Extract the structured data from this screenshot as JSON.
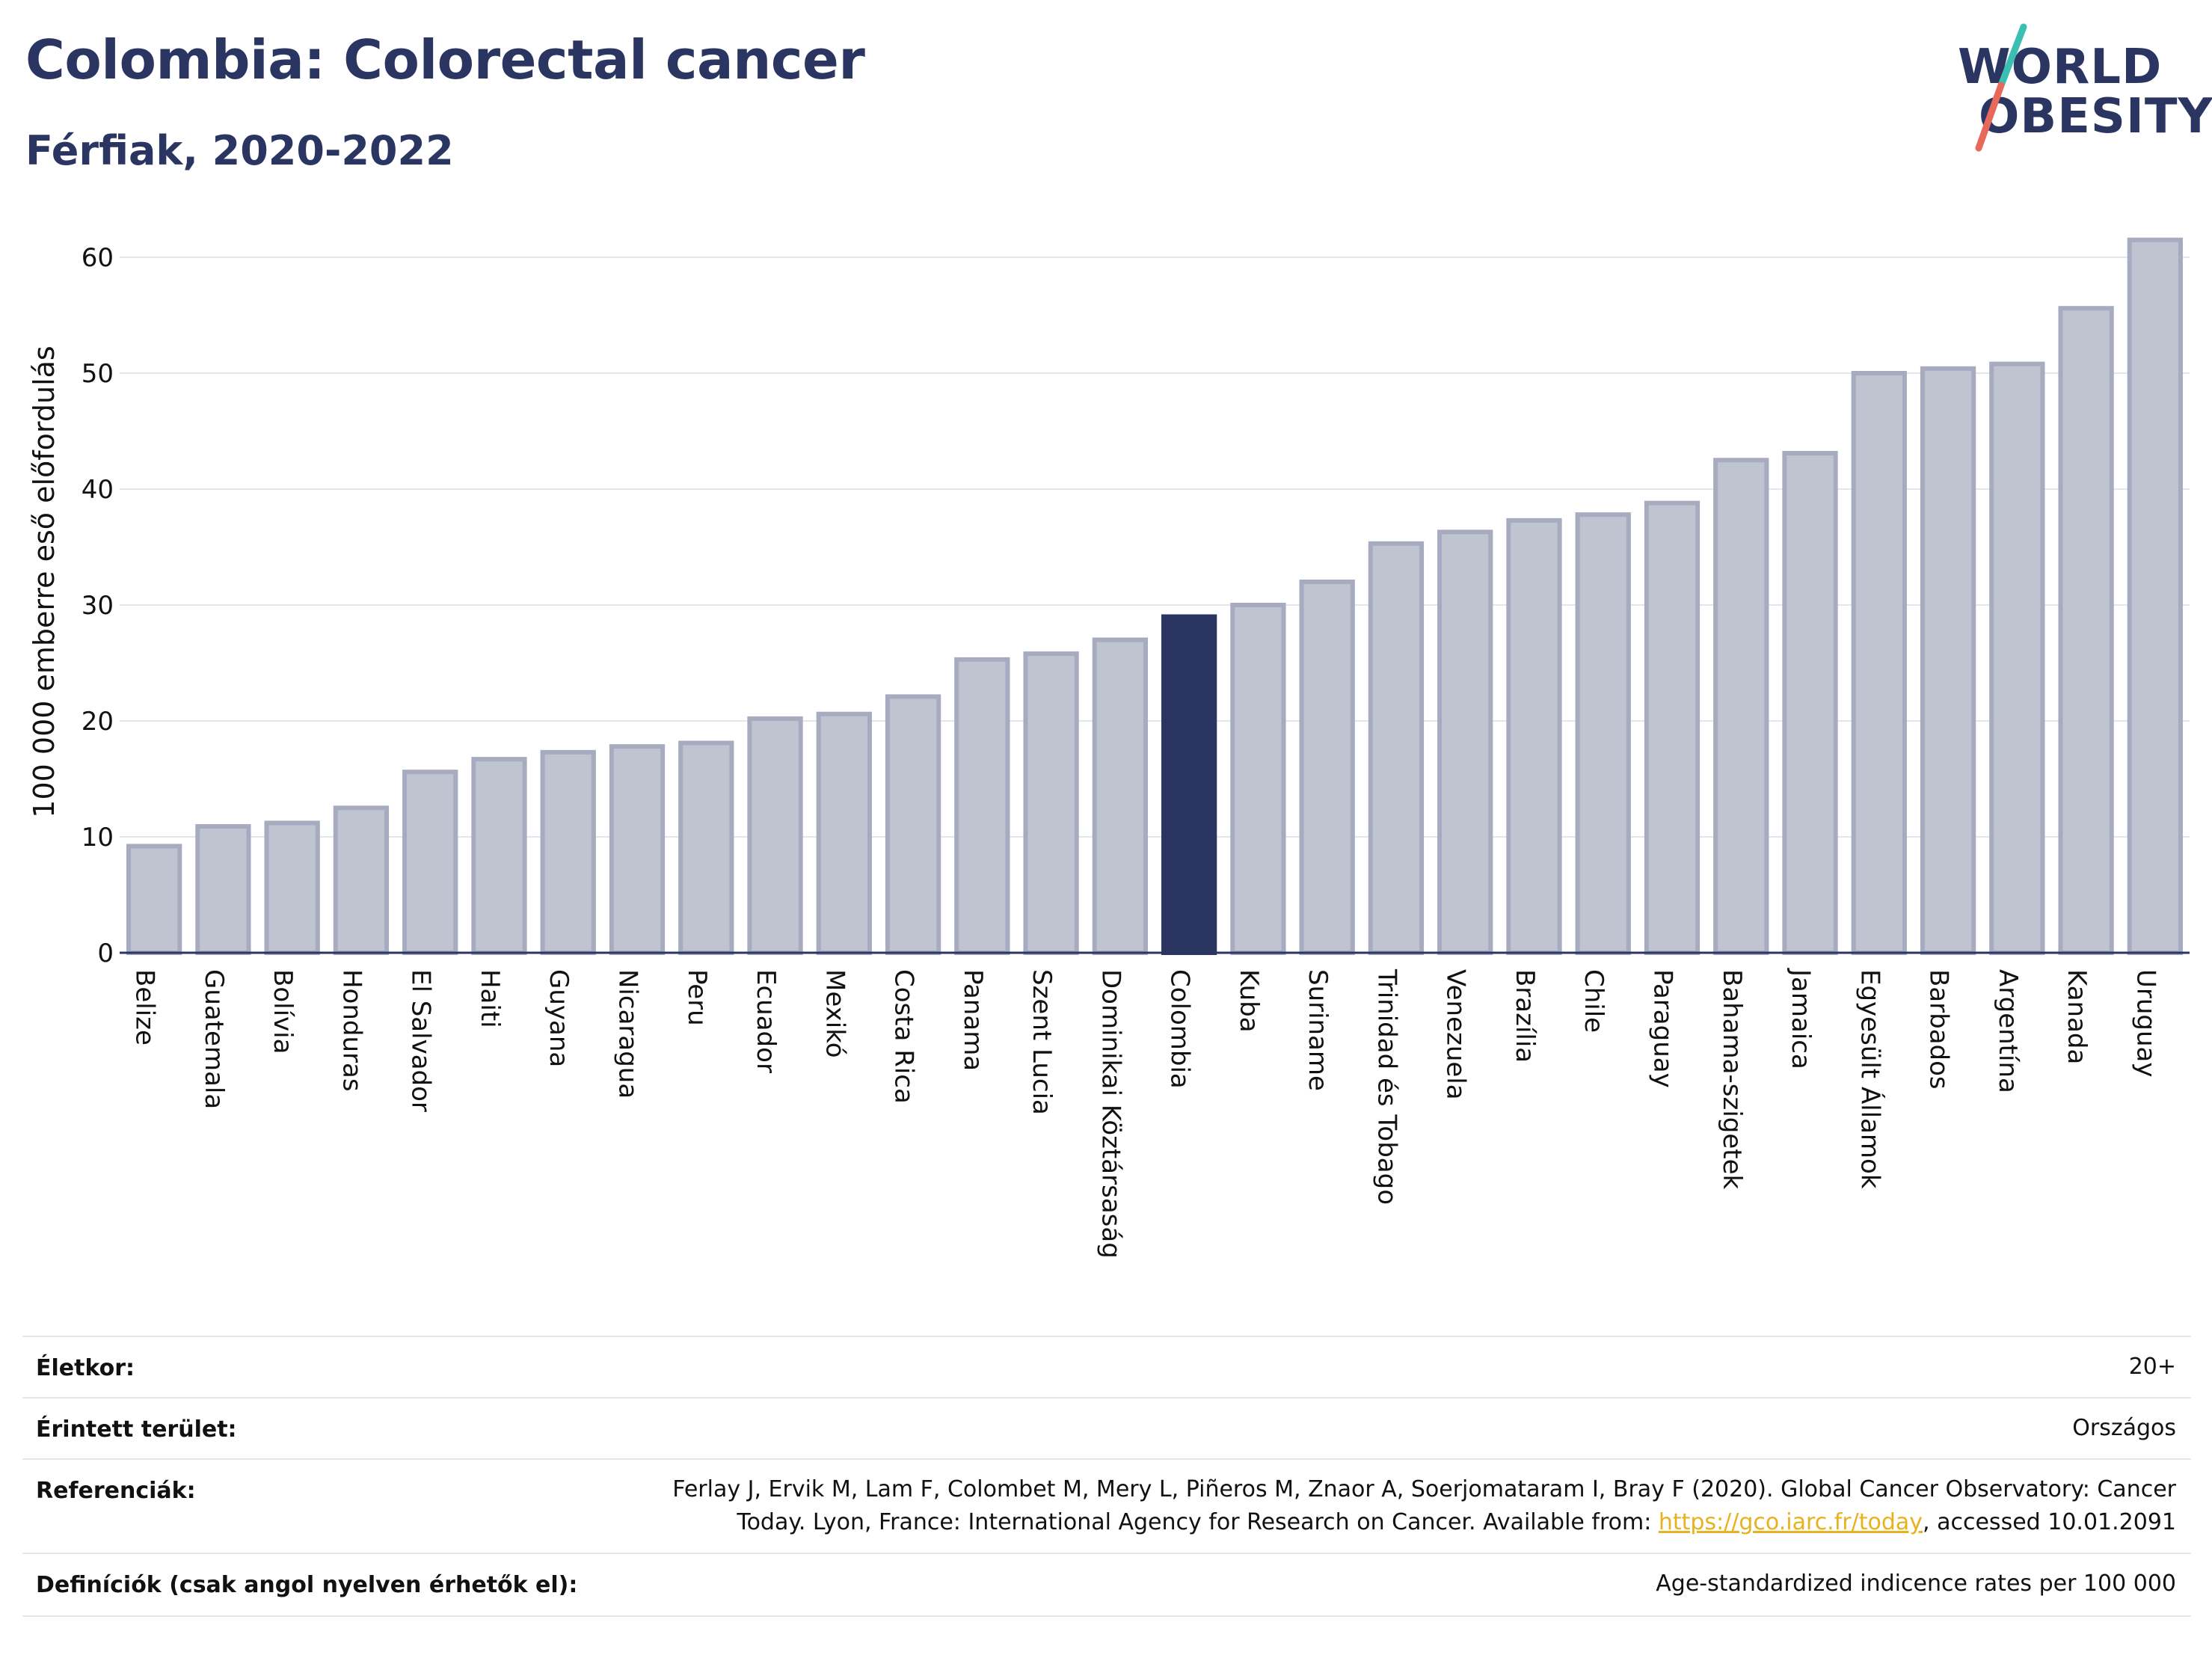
{
  "header": {
    "title": "Colombia: Colorectal cancer",
    "subtitle": "Férfiak, 2020-2022"
  },
  "logo": {
    "line1": "WORLD",
    "line2": "OBESITY",
    "colors": {
      "text": "#2b3562",
      "slash_top": "#3bbfb3",
      "slash_bottom": "#e8685a"
    }
  },
  "colors": {
    "bar_default": "#c0c3d0",
    "bar_default_border": "#a6abbf",
    "bar_highlight": "#2b3562",
    "grid": "#e4e6ee",
    "axis": "#2b3562"
  },
  "chart_data": {
    "type": "bar",
    "ylabel": "100 000 emberre eső előfordulás",
    "ylim": [
      0,
      64
    ],
    "yticks": [
      0,
      10,
      20,
      30,
      40,
      50,
      60
    ],
    "grid": true,
    "highlight": "Colombia",
    "categories": [
      "Belize",
      "Guatemala",
      "Bolívia",
      "Honduras",
      "El Salvador",
      "Haiti",
      "Guyana",
      "Nicaragua",
      "Peru",
      "Ecuador",
      "Mexikó",
      "Costa Rica",
      "Panama",
      "Szent Lucia",
      "Dominikai Köztársaság",
      "Colombia",
      "Kuba",
      "Suriname",
      "Trinidad és Tobago",
      "Venezuela",
      "Brazília",
      "Chile",
      "Paraguay",
      "Bahama-szigetek",
      "Jamaica",
      "Egyesült Államok",
      "Barbados",
      "Argentína",
      "Kanada",
      "Uruguay"
    ],
    "values": [
      9.2,
      10.9,
      11.2,
      12.5,
      15.6,
      16.7,
      17.3,
      17.8,
      18.1,
      20.2,
      20.6,
      22.1,
      25.3,
      25.8,
      27.0,
      29.0,
      30.0,
      32.0,
      35.3,
      36.3,
      37.3,
      37.8,
      38.8,
      42.5,
      43.1,
      50.0,
      50.4,
      50.8,
      55.6,
      61.5
    ]
  },
  "info": {
    "age_label": "Életkor:",
    "age_value": "20+",
    "area_label": "Érintett terület:",
    "area_value": "Országos",
    "ref_label": "Referenciák:",
    "ref_line1": "Ferlay J, Ervik M, Lam F, Colombet M, Mery L, Piñeros M, Znaor A, Soerjomataram I, Bray F (2020). Global Cancer Observatory: Cancer",
    "ref_line2_pre": "Today. Lyon, France: International Agency for Research on Cancer. Available from: ",
    "ref_link": "https://gco.iarc.fr/today",
    "ref_line2_post": ", accessed 10.01.2091",
    "def_label": "Definíciók (csak angol nyelven érhetők el):",
    "def_value": "Age-standardized indicence rates per 100 000"
  }
}
